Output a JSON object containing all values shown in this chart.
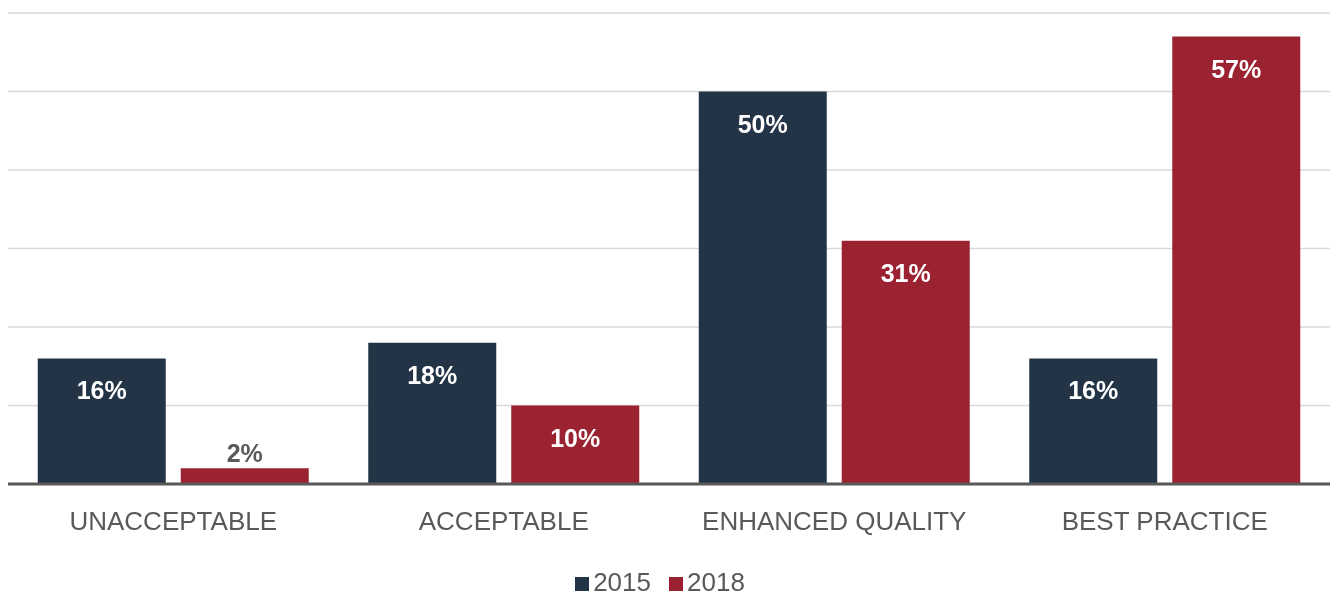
{
  "chart_data": {
    "type": "bar",
    "categories": [
      "UNACCEPTABLE",
      "ACCEPTABLE",
      "ENHANCED QUALITY",
      "BEST PRACTICE"
    ],
    "series": [
      {
        "name": "2015",
        "color": "#243447",
        "values": [
          16,
          18,
          50,
          16
        ],
        "value_labels": [
          "16%",
          "18%",
          "50%",
          "16%"
        ]
      },
      {
        "name": "2018",
        "color": "#9b2230",
        "values": [
          2,
          10,
          31,
          57
        ],
        "value_labels": [
          "2%",
          "10%",
          "31%",
          "57%"
        ]
      }
    ],
    "ylim": [
      0,
      60
    ],
    "yticks": [
      {
        "value": 0,
        "label": null
      },
      {
        "value": 10,
        "label": null
      },
      {
        "value": 20,
        "label": null
      },
      {
        "value": 30,
        "label": null
      },
      {
        "value": 40,
        "label": null
      },
      {
        "value": 50,
        "label": null
      },
      {
        "value": 60,
        "label": null
      }
    ],
    "grid": "y",
    "legend": "bottom",
    "tick_labels": "x"
  }
}
